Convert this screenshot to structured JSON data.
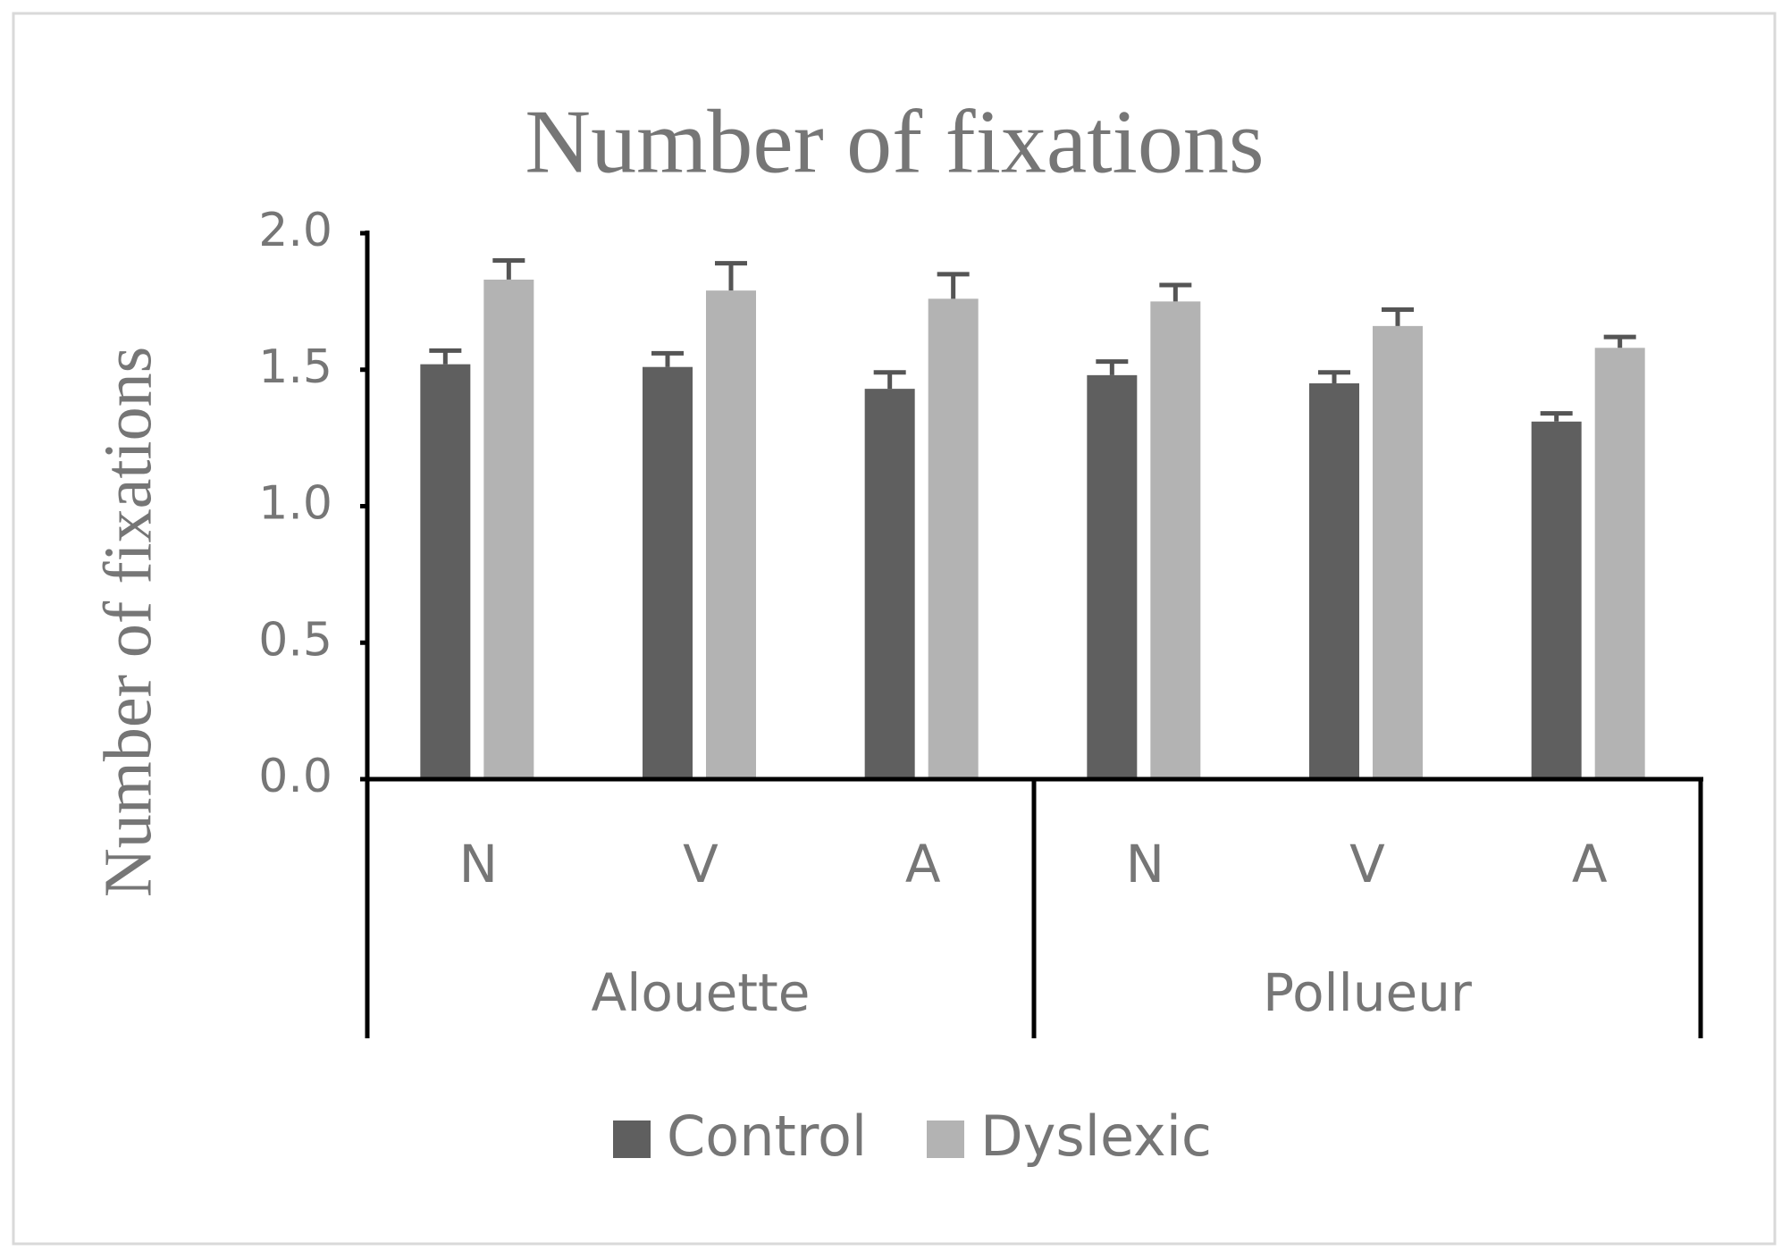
{
  "chart_data": {
    "type": "bar",
    "title": "Number of fixations",
    "y_label": "Number of fixations",
    "categories": [
      "N",
      "V",
      "A",
      "N",
      "V",
      "A"
    ],
    "groups": [
      "Alouette",
      "Pollueur"
    ],
    "series": [
      {
        "name": "Control",
        "color": "#5f5f5f",
        "values": [
          1.52,
          1.51,
          1.43,
          1.48,
          1.45,
          1.31
        ],
        "errors": [
          0.05,
          0.05,
          0.06,
          0.05,
          0.04,
          0.03
        ]
      },
      {
        "name": "Dyslexic",
        "color": "#b3b3b3",
        "values": [
          1.83,
          1.79,
          1.76,
          1.75,
          1.66,
          1.58
        ],
        "errors": [
          0.07,
          0.1,
          0.09,
          0.06,
          0.06,
          0.04
        ]
      }
    ],
    "ylim": [
      0,
      2
    ],
    "yticks": [
      {
        "value": 0,
        "label": "0.0"
      },
      0.5,
      {
        "value": 1,
        "label": "1.0"
      },
      1.5,
      {
        "value": 2,
        "label": "2.0"
      }
    ],
    "grid": false,
    "legend": "bottom"
  }
}
